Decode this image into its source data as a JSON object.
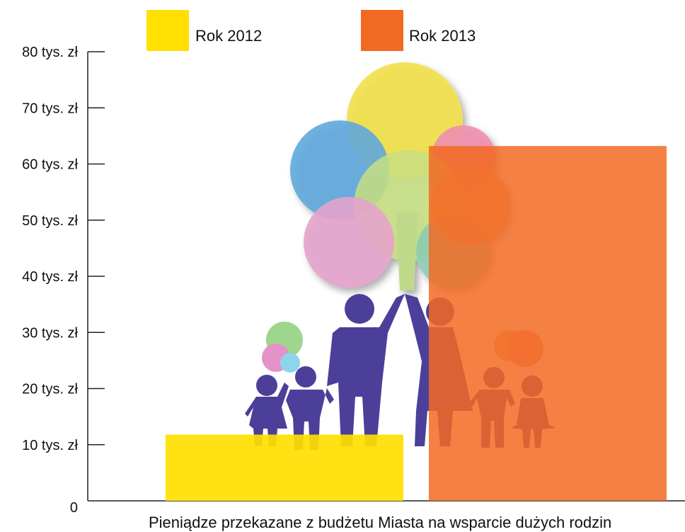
{
  "chart_data": {
    "type": "bar",
    "title": "",
    "xlabel": "Pieniądze przekazane z budżetu Miasta na wsparcie dużych rodzin",
    "ylabel": "",
    "ylim": [
      0,
      80
    ],
    "yticks": [
      0,
      10,
      20,
      30,
      40,
      50,
      60,
      70,
      80
    ],
    "ytick_labels": [
      "0",
      "10 tys. zł",
      "20 tys. zł",
      "30 tys. zł",
      "40 tys. zł",
      "50 tys. zł",
      "60 tys. zł",
      "70 tys. zł",
      "80 tys. zł"
    ],
    "series": [
      {
        "name": "Rok 2012",
        "value": 11.8,
        "color": "#FFE000"
      },
      {
        "name": "Rok 2013",
        "value": 63.2,
        "color": "#F26A22"
      }
    ],
    "legend_position": "top",
    "grid": false,
    "illustration": "family-with-balloon-tree"
  }
}
